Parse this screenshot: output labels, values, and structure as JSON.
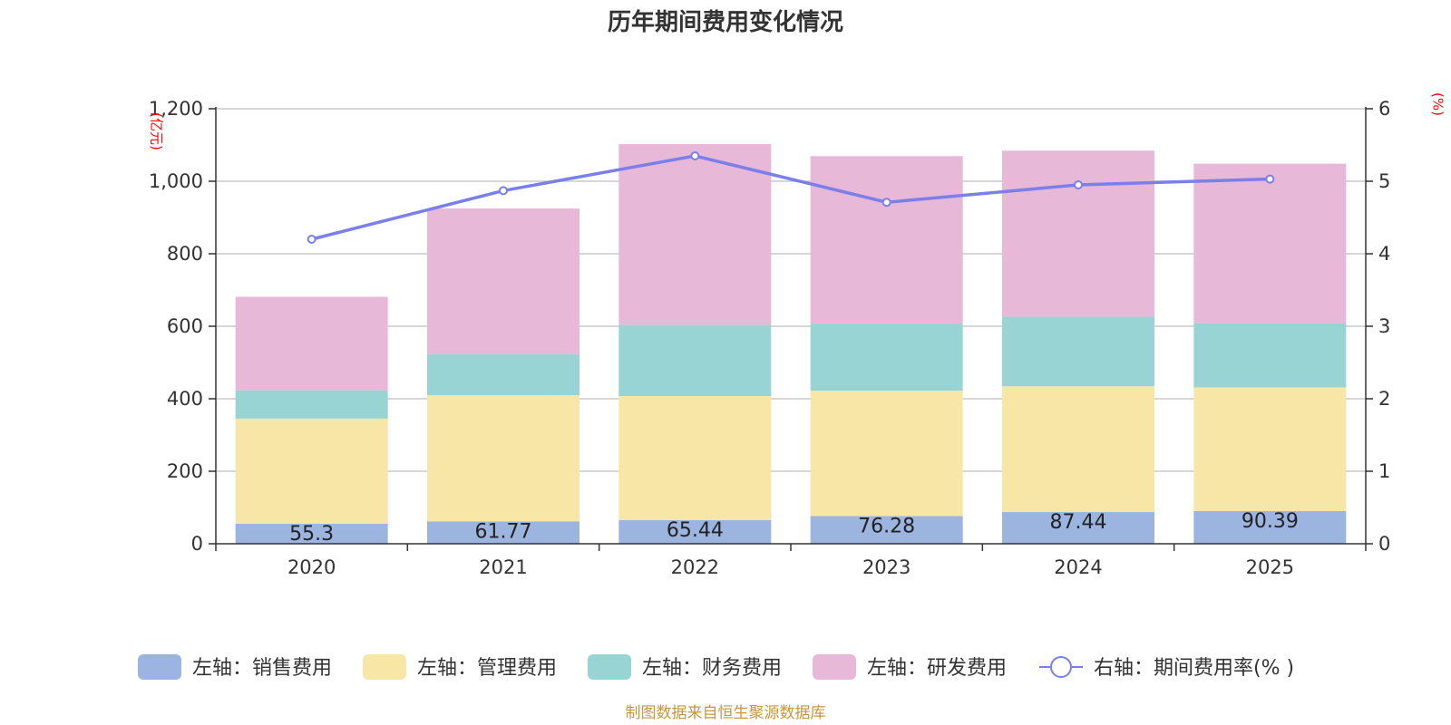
{
  "chart_data": {
    "type": "bar",
    "stacked": true,
    "title": "历年期间费用变化情况",
    "categories": [
      "2020",
      "2021",
      "2022",
      "2023",
      "2024",
      "2025"
    ],
    "series": [
      {
        "name": "左轴：销售费用",
        "axis": "left",
        "color": "#9bb5e0",
        "values": [
          55.3,
          61.77,
          65.44,
          76.28,
          87.44,
          90.39
        ],
        "labels": [
          "55.3",
          "61.77",
          "65.44",
          "76.28",
          "87.44",
          "90.39"
        ]
      },
      {
        "name": "左轴：管理费用",
        "axis": "left",
        "color": "#f8e6a6",
        "values": [
          290,
          348,
          342,
          346,
          347,
          341
        ]
      },
      {
        "name": "左轴：财务费用",
        "axis": "left",
        "color": "#98d4d4",
        "values": [
          78,
          113,
          197,
          185,
          192,
          177
        ]
      },
      {
        "name": "左轴：研发费用",
        "axis": "left",
        "color": "#e7b8d8",
        "values": [
          258,
          402,
          498,
          462,
          458,
          440
        ]
      },
      {
        "name": "右轴：期间费用率(% )",
        "axis": "right",
        "type": "line",
        "color": "#7a7fea",
        "values": [
          4.2,
          4.87,
          5.35,
          4.71,
          4.95,
          5.03
        ]
      }
    ],
    "left_axis": {
      "unit": "(亿元)",
      "ylim": [
        0,
        1200
      ],
      "ticks": [
        0,
        200,
        400,
        600,
        800,
        1000,
        1200
      ],
      "tick_labels": [
        "0",
        "200",
        "400",
        "600",
        "800",
        "1,000",
        "1,200"
      ]
    },
    "right_axis": {
      "unit": "(%)",
      "ylim": [
        0,
        6
      ],
      "ticks": [
        0,
        1,
        2,
        3,
        4,
        5,
        6
      ],
      "tick_labels": [
        "0",
        "1",
        "2",
        "3",
        "4",
        "5",
        "6"
      ]
    },
    "grid": true,
    "legend_position": "bottom"
  },
  "source": "制图数据来自恒生聚源数据库"
}
